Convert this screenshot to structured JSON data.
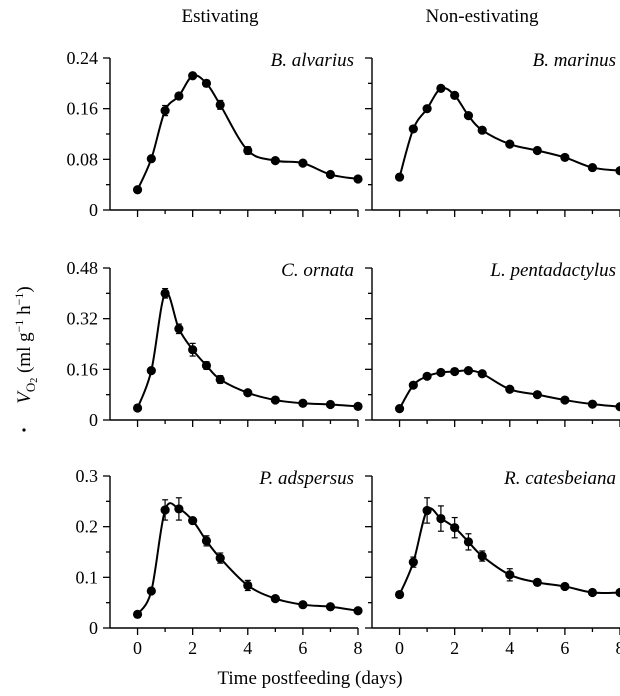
{
  "column_headers": [
    "Estivating",
    "Non-estivating"
  ],
  "x_axis_label": "Time postfeeding (days)",
  "y_axis_label": "VO2 (ml g−1 h−1)",
  "chart_data": [
    {
      "type": "line",
      "title": "B. alvarius",
      "row": 0,
      "col": 0,
      "xlim": [
        -1,
        8
      ],
      "ylim": [
        0,
        0.24
      ],
      "yticks": [
        "0",
        "0.08",
        "0.16",
        "0.24"
      ],
      "x": [
        0,
        0.5,
        1,
        1.5,
        2,
        2.5,
        3,
        4,
        5,
        6,
        7,
        8
      ],
      "y": [
        0.032,
        0.081,
        0.157,
        0.18,
        0.212,
        0.2,
        0.166,
        0.094,
        0.078,
        0.074,
        0.056,
        0.049
      ],
      "err": [
        0,
        0.003,
        0.008,
        0.004,
        0.003,
        0.005,
        0.007,
        0.006,
        0.003,
        0.003,
        0.003,
        0.003
      ]
    },
    {
      "type": "line",
      "title": "B. marinus",
      "row": 0,
      "col": 1,
      "xlim": [
        -1,
        8
      ],
      "ylim": [
        0,
        0.24
      ],
      "x": [
        0,
        0.5,
        1,
        1.5,
        2,
        2.5,
        3,
        4,
        5,
        6,
        7,
        8
      ],
      "y": [
        0.052,
        0.128,
        0.16,
        0.192,
        0.181,
        0.149,
        0.126,
        0.104,
        0.094,
        0.083,
        0.067,
        0.062
      ],
      "err": [
        0,
        0.003,
        0.003,
        0.003,
        0.003,
        0.003,
        0.003,
        0.003,
        0.003,
        0.003,
        0.002,
        0.002
      ]
    },
    {
      "type": "line",
      "title": "C. ornata",
      "row": 1,
      "col": 0,
      "xlim": [
        -1,
        8
      ],
      "ylim": [
        0,
        0.48
      ],
      "yticks": [
        "0",
        "0.16",
        "0.32",
        "0.48"
      ],
      "x": [
        0,
        0.5,
        1,
        1.5,
        2,
        2.5,
        3,
        4,
        5,
        6,
        7,
        8
      ],
      "y": [
        0.038,
        0.156,
        0.4,
        0.288,
        0.222,
        0.172,
        0.128,
        0.086,
        0.063,
        0.053,
        0.049,
        0.043
      ],
      "err": [
        0,
        0.004,
        0.015,
        0.015,
        0.02,
        0.012,
        0.012,
        0.006,
        0.004,
        0.004,
        0.003,
        0.003
      ]
    },
    {
      "type": "line",
      "title": "L. pentadactylus",
      "row": 1,
      "col": 1,
      "xlim": [
        -1,
        8
      ],
      "ylim": [
        0,
        0.48
      ],
      "x": [
        0,
        0.5,
        1,
        1.5,
        2,
        2.5,
        3,
        4,
        5,
        6,
        7,
        8
      ],
      "y": [
        0.036,
        0.11,
        0.138,
        0.15,
        0.153,
        0.156,
        0.146,
        0.097,
        0.08,
        0.063,
        0.05,
        0.042
      ],
      "err": [
        0,
        0.006,
        0.004,
        0.004,
        0.004,
        0.004,
        0.004,
        0.003,
        0.003,
        0.003,
        0.003,
        0.003
      ]
    },
    {
      "type": "line",
      "title": "P. adspersus",
      "row": 2,
      "col": 0,
      "xlim": [
        -1,
        8
      ],
      "ylim": [
        0,
        0.3
      ],
      "yticks": [
        "0",
        "0.1",
        "0.2",
        "0.3"
      ],
      "x": [
        0,
        0.5,
        1,
        1.5,
        2,
        2.5,
        3,
        4,
        5,
        6,
        7,
        8
      ],
      "y": [
        0.027,
        0.073,
        0.233,
        0.235,
        0.212,
        0.172,
        0.138,
        0.084,
        0.058,
        0.046,
        0.042,
        0.034
      ],
      "err": [
        0,
        0.004,
        0.02,
        0.022,
        0.006,
        0.01,
        0.01,
        0.01,
        0.004,
        0.003,
        0.003,
        0.003
      ]
    },
    {
      "type": "line",
      "title": "R. catesbeiana",
      "row": 2,
      "col": 1,
      "xlim": [
        -1,
        8
      ],
      "ylim": [
        0,
        0.3
      ],
      "x": [
        0,
        0.5,
        1,
        1.5,
        2,
        2.5,
        3,
        4,
        5,
        6,
        7,
        8
      ],
      "y": [
        0.066,
        0.13,
        0.232,
        0.216,
        0.198,
        0.17,
        0.142,
        0.105,
        0.09,
        0.082,
        0.07,
        0.07
      ],
      "err": [
        0,
        0.01,
        0.025,
        0.025,
        0.02,
        0.016,
        0.01,
        0.012,
        0.004,
        0.004,
        0.003,
        0.003
      ]
    }
  ],
  "x_ticks": [
    "0",
    "2",
    "4",
    "6",
    "8"
  ]
}
